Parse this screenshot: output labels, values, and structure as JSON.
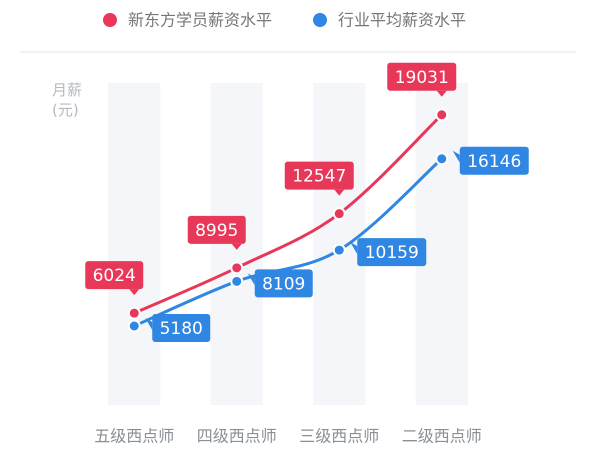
{
  "chart_data": {
    "type": "line",
    "y_label": "月薪\n(元)",
    "categories": [
      "五级西点师",
      "四级西点师",
      "三级西点师",
      "二级西点师"
    ],
    "series": [
      {
        "name": "新东方学员薪资水平",
        "color": "#e8385a",
        "values": [
          6024,
          8995,
          12547,
          19031
        ]
      },
      {
        "name": "行业平均薪资水平",
        "color": "#2f86e3",
        "values": [
          5180,
          8109,
          10159,
          16146
        ]
      }
    ],
    "ylim": [
      0,
      20000
    ],
    "legend": "top"
  }
}
